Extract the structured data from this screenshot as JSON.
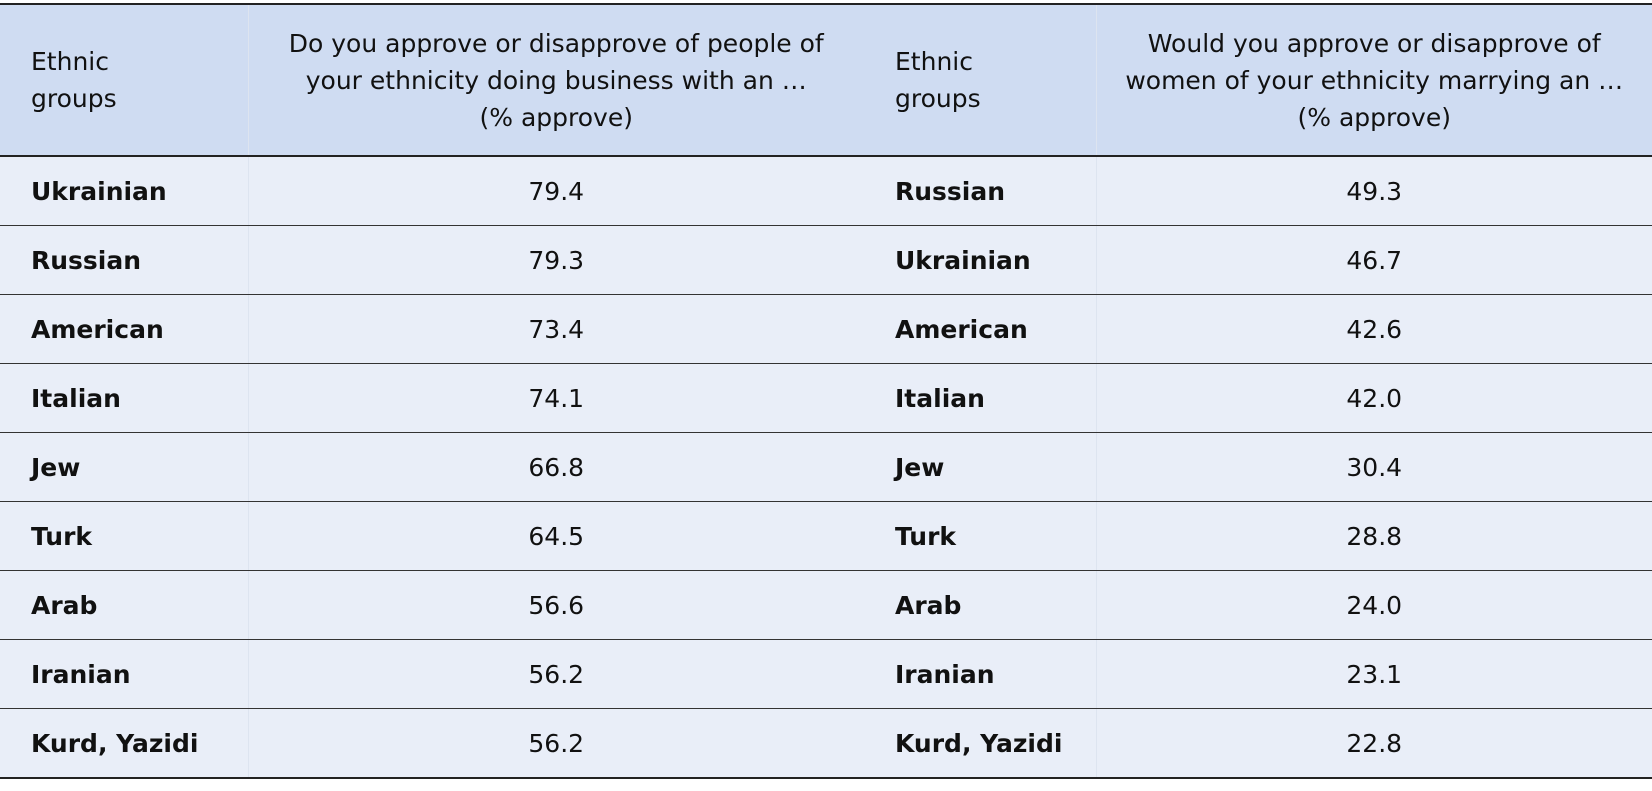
{
  "table": {
    "headers": [
      [
        "Ethnic",
        "groups"
      ],
      [
        "Do you approve or disapprove of people of",
        "your ethnicity doing business with an …",
        "(% approve)"
      ],
      [
        "Ethnic",
        "groups"
      ],
      [
        "Would you approve or disapprove of",
        "women of your ethnicity marrying an …",
        "(% approve)"
      ]
    ],
    "rows": [
      [
        "Ukrainian",
        "79.4",
        "Russian",
        "49.3"
      ],
      [
        "Russian",
        "79.3",
        "Ukrainian",
        "46.7"
      ],
      [
        "American",
        "73.4",
        "American",
        "42.6"
      ],
      [
        "Italian",
        "74.1",
        "Italian",
        "42.0"
      ],
      [
        "Jew",
        "66.8",
        "Jew",
        "30.4"
      ],
      [
        "Turk",
        "64.5",
        "Turk",
        "28.8"
      ],
      [
        "Arab",
        "56.6",
        "Arab",
        "24.0"
      ],
      [
        "Iranian",
        "56.2",
        "Iranian",
        "23.1"
      ],
      [
        "Kurd, Yazidi",
        "56.2",
        "Kurd, Yazidi",
        "22.8"
      ]
    ]
  }
}
